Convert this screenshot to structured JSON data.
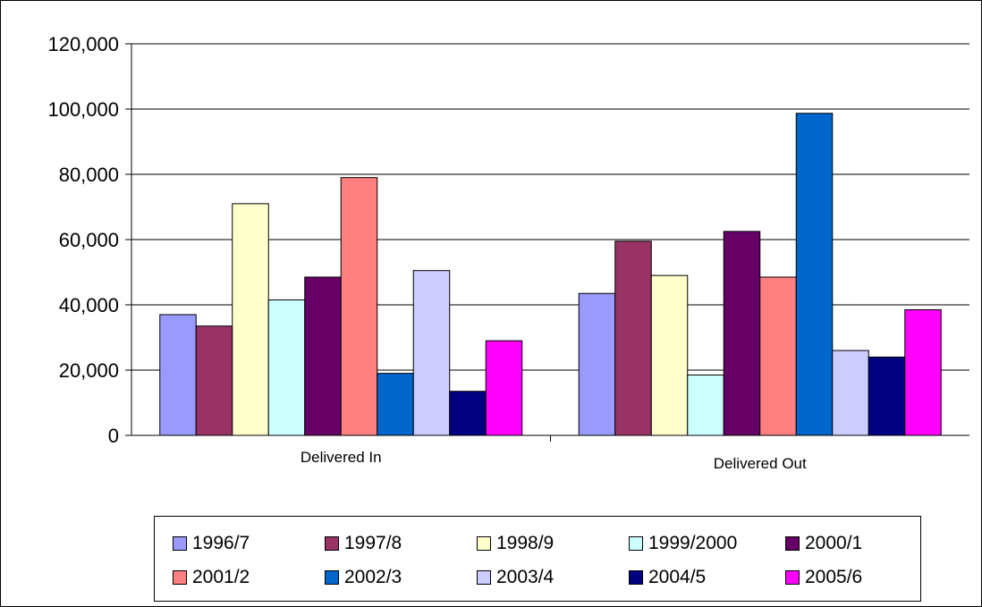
{
  "chart_data": {
    "type": "bar",
    "categories": [
      "Delivered In",
      "Delivered Out"
    ],
    "series": [
      {
        "name": "1996/7",
        "color": "#9999ff",
        "values": [
          37000,
          43500
        ]
      },
      {
        "name": "1997/8",
        "color": "#993366",
        "values": [
          33500,
          59500
        ]
      },
      {
        "name": "1998/9",
        "color": "#ffffcc",
        "values": [
          71000,
          49000
        ]
      },
      {
        "name": "1999/2000",
        "color": "#ccffff",
        "values": [
          41500,
          18500
        ]
      },
      {
        "name": "2000/1",
        "color": "#660066",
        "values": [
          48500,
          62500
        ]
      },
      {
        "name": "2001/2",
        "color": "#ff8080",
        "values": [
          79000,
          48500
        ]
      },
      {
        "name": "2002/3",
        "color": "#0066cc",
        "values": [
          19000,
          98700
        ]
      },
      {
        "name": "2003/4",
        "color": "#ccccff",
        "values": [
          50500,
          26000
        ]
      },
      {
        "name": "2004/5",
        "color": "#000080",
        "values": [
          13500,
          24000
        ]
      },
      {
        "name": "2005/6",
        "color": "#ff00ff",
        "values": [
          29000,
          38500
        ]
      }
    ],
    "ylim": [
      0,
      120000
    ],
    "yticks": [
      "0",
      "20,000",
      "40,000",
      "60,000",
      "80,000",
      "100,000",
      "120,000"
    ],
    "grid": true,
    "legend_position": "bottom"
  }
}
